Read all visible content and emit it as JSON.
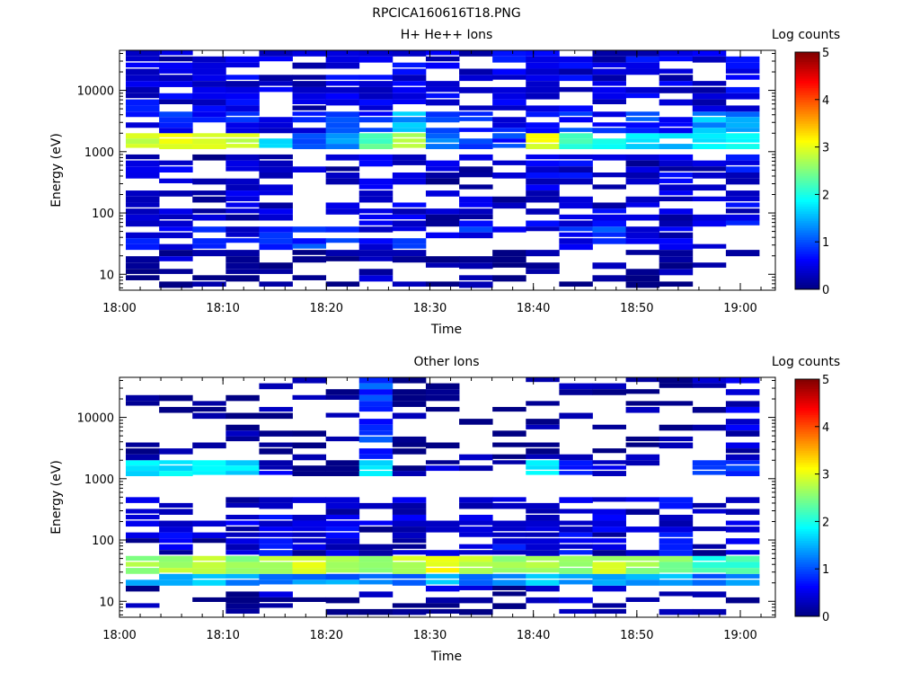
{
  "figure_title": "RPCICA160616T18.PNG",
  "chart_data": [
    {
      "type": "heatmap",
      "title": "H+ He++ Ions",
      "xlabel": "Time",
      "ylabel": "Energy (eV)",
      "x_ticks": [
        "18:00",
        "18:10",
        "18:20",
        "18:30",
        "18:40",
        "18:50",
        "19:00"
      ],
      "y_ticks": [
        "10",
        "100",
        "1000",
        "10000"
      ],
      "y_scale": "log",
      "ylim": [
        5.5,
        45000
      ],
      "xlim": [
        "18:00",
        "19:03"
      ],
      "colorbar": {
        "label": "Log counts",
        "ticks": [
          "0",
          "1",
          "2",
          "3",
          "4",
          "5"
        ],
        "range": [
          0,
          5
        ]
      },
      "x_bins": 19,
      "energy_bands": [
        {
          "energy_range": [
            6,
            25
          ],
          "log_counts": [
            0.1,
            0.3,
            0.0,
            0.2,
            0.1,
            0.2,
            0.0,
            0.2,
            0.2,
            0.0,
            0.2,
            0.0,
            0.3,
            0.1,
            0.3,
            0.0,
            0.1,
            0.0,
            0.2
          ]
        },
        {
          "energy_range": [
            25,
            60
          ],
          "log_counts": [
            0.5,
            0.6,
            0.7,
            0.6,
            0.6,
            0.8,
            0.7,
            0.6,
            0.7,
            0.6,
            0.7,
            0.5,
            0.6,
            0.6,
            0.9,
            0.5,
            0.4,
            0.3,
            0.3
          ]
        },
        {
          "energy_range": [
            60,
            900
          ],
          "log_counts": [
            0.4,
            0.4,
            0.3,
            0.4,
            0.4,
            0.3,
            0.3,
            0.4,
            0.4,
            0.3,
            0.4,
            0.3,
            0.4,
            0.5,
            0.4,
            0.3,
            0.4,
            0.4,
            0.5
          ]
        },
        {
          "energy_range": [
            1100,
            2000
          ],
          "log_counts": [
            2.9,
            3.0,
            3.0,
            2.9,
            1.8,
            1.0,
            1.5,
            2.3,
            2.7,
            1.2,
            1.0,
            0.9,
            3.0,
            2.2,
            1.9,
            1.7,
            1.5,
            1.8,
            2.0
          ]
        },
        {
          "energy_range": [
            2000,
            4500
          ],
          "log_counts": [
            0.6,
            0.7,
            0.7,
            0.8,
            0.6,
            0.7,
            0.8,
            0.7,
            1.5,
            0.8,
            0.7,
            0.6,
            0.7,
            0.8,
            0.6,
            0.9,
            0.6,
            1.4,
            1.4
          ]
        },
        {
          "energy_range": [
            4500,
            45000
          ],
          "log_counts": [
            0.5,
            0.4,
            0.5,
            0.5,
            0.4,
            0.4,
            0.5,
            0.4,
            0.5,
            0.4,
            0.4,
            0.5,
            0.4,
            0.5,
            0.4,
            0.5,
            0.4,
            0.4,
            0.5
          ]
        }
      ]
    },
    {
      "type": "heatmap",
      "title": "Other Ions",
      "xlabel": "Time",
      "ylabel": "Energy (eV)",
      "x_ticks": [
        "18:00",
        "18:10",
        "18:20",
        "18:30",
        "18:40",
        "18:50",
        "19:00"
      ],
      "y_ticks": [
        "10",
        "100",
        "1000",
        "10000"
      ],
      "y_scale": "log",
      "ylim": [
        5.5,
        45000
      ],
      "xlim": [
        "18:00",
        "19:03"
      ],
      "colorbar": {
        "label": "Log counts",
        "ticks": [
          "0",
          "1",
          "2",
          "3",
          "4",
          "5"
        ],
        "range": [
          0,
          5
        ]
      },
      "x_bins": 19,
      "energy_bands": [
        {
          "energy_range": [
            6,
            18
          ],
          "log_counts": [
            0.1,
            0.0,
            0.0,
            0.1,
            0.2,
            0.0,
            0.0,
            0.1,
            0.2,
            0.3,
            0.2,
            0.1,
            0.2,
            0.2,
            0.2,
            0.1,
            0.2,
            0.0,
            0.3
          ]
        },
        {
          "energy_range": [
            18,
            28
          ],
          "log_counts": [
            1.6,
            1.2,
            1.5,
            1.4,
            1.3,
            1.2,
            1.3,
            1.4,
            1.2,
            1.6,
            1.2,
            1.3,
            1.5,
            1.4,
            1.5,
            1.3,
            1.5,
            1.2,
            1.4
          ]
        },
        {
          "energy_range": [
            28,
            55
          ],
          "log_counts": [
            2.6,
            2.7,
            2.8,
            2.6,
            2.7,
            2.9,
            2.8,
            2.6,
            2.8,
            3.0,
            2.8,
            2.6,
            2.7,
            2.6,
            2.8,
            2.6,
            2.5,
            2.1,
            2.2
          ]
        },
        {
          "energy_range": [
            55,
            500
          ],
          "log_counts": [
            0.3,
            0.4,
            0.3,
            0.4,
            0.5,
            0.4,
            0.4,
            0.3,
            0.4,
            0.3,
            0.4,
            0.5,
            0.5,
            0.6,
            0.4,
            0.4,
            0.5,
            0.3,
            0.4
          ]
        },
        {
          "energy_range": [
            1100,
            2000
          ],
          "log_counts": [
            1.8,
            1.8,
            1.8,
            1.7,
            0.4,
            0.0,
            0.2,
            1.8,
            0.0,
            0.3,
            0.2,
            0.0,
            1.9,
            0.5,
            0.4,
            0.0,
            0.3,
            0.7,
            1.0
          ]
        },
        {
          "energy_range": [
            2000,
            45000
          ],
          "log_counts": [
            0.1,
            0.1,
            0.1,
            0.1,
            0.1,
            0.1,
            0.1,
            0.9,
            0.0,
            0.1,
            0.1,
            0.0,
            0.1,
            0.1,
            0.1,
            0.1,
            0.1,
            0.3,
            0.4
          ]
        }
      ]
    }
  ]
}
